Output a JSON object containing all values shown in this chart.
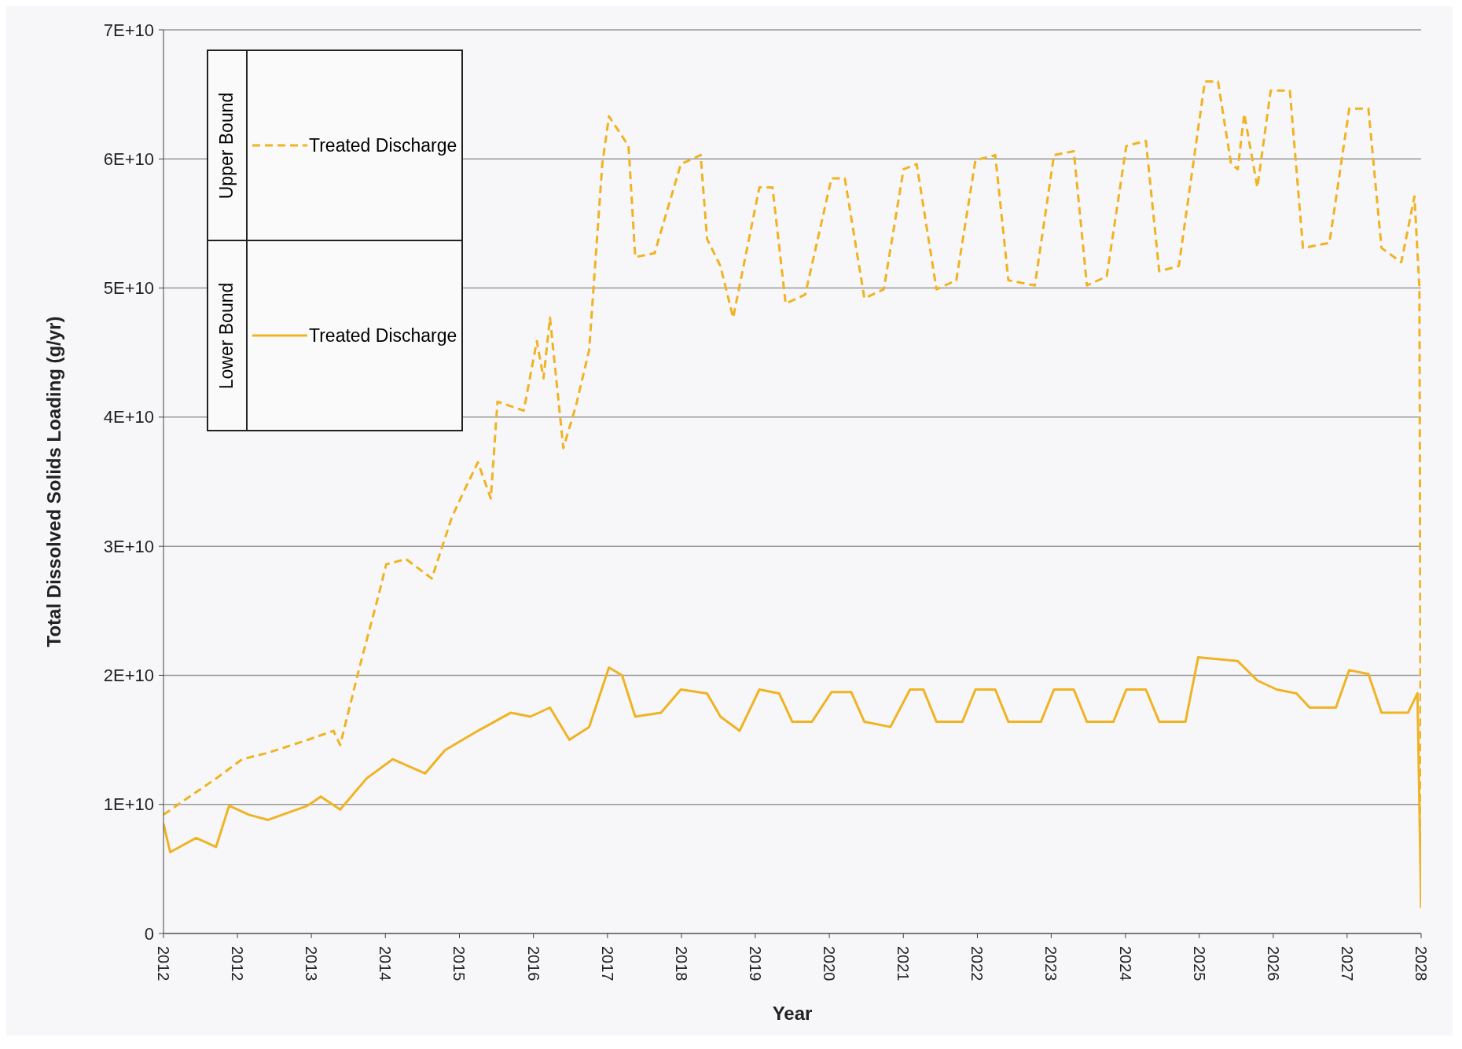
{
  "chart_data": {
    "type": "line",
    "xlabel": "Year",
    "ylabel": "Total Dissolved Solids Loading (g/yr)",
    "annotations": [
      "Upper Bound",
      "Lower Bound"
    ],
    "xlim": [
      "2012-01-01",
      "2028-01-01"
    ],
    "xticks": [
      {
        "value": "2012-01-01",
        "label": "2012"
      },
      {
        "value": "2012-12-10",
        "label": "2012"
      },
      {
        "value": "2013-11-18",
        "label": "2013"
      },
      {
        "value": "2014-10-28",
        "label": "2014"
      },
      {
        "value": "2015-10-07",
        "label": "2015"
      },
      {
        "value": "2016-09-15",
        "label": "2016"
      },
      {
        "value": "2017-08-25",
        "label": "2017"
      },
      {
        "value": "2018-08-04",
        "label": "2018"
      },
      {
        "value": "2019-07-13",
        "label": "2019"
      },
      {
        "value": "2020-06-21",
        "label": "2020"
      },
      {
        "value": "2021-05-31",
        "label": "2021"
      },
      {
        "value": "2022-05-10",
        "label": "2022"
      },
      {
        "value": "2023-04-18",
        "label": "2023"
      },
      {
        "value": "2024-03-28",
        "label": "2024"
      },
      {
        "value": "2025-03-06",
        "label": "2025"
      },
      {
        "value": "2026-02-13",
        "label": "2026"
      },
      {
        "value": "2027-01-22",
        "label": "2027"
      },
      {
        "value": "2028-01-01",
        "label": "2028"
      }
    ],
    "ylim": [
      0,
      70000000000
    ],
    "yticks": [
      0,
      {
        "value": 10000000000,
        "label": "1E+10"
      },
      {
        "value": 20000000000,
        "label": "2E+10"
      },
      {
        "value": 30000000000,
        "label": "3E+10"
      },
      {
        "value": 40000000000,
        "label": "4E+10"
      },
      {
        "value": 50000000000,
        "label": "5E+10"
      },
      {
        "value": 60000000000,
        "label": "6E+10"
      },
      {
        "value": 70000000000,
        "label": "7E+10"
      }
    ],
    "grid": "y",
    "legend": "top left",
    "marker": "none",
    "series": [
      {
        "name": "Treated Discharge",
        "color": "#f0b323",
        "line_style": "dashed",
        "x": [
          "2012-01",
          "2012-05",
          "2012-09",
          "2013-01",
          "2013-05",
          "2013-11",
          "2014-03",
          "2014-04",
          "2014-07",
          "2014-10",
          "2014-11",
          "2015-02",
          "2015-06",
          "2015-09",
          "2015-11",
          "2016-01",
          "2016-03",
          "2016-04",
          "2016-08",
          "2016-10",
          "2016-11",
          "2016-12",
          "2017-02",
          "2017-04",
          "2017-06",
          "2017-08",
          "2017-09",
          "2017-12",
          "2018-01",
          "2018-04",
          "2018-08",
          "2018-11",
          "2018-12",
          "2019-02",
          "2019-04",
          "2019-08",
          "2019-10",
          "2019-12",
          "2020-03",
          "2020-07",
          "2020-09",
          "2020-12",
          "2021-03",
          "2021-06",
          "2021-08",
          "2021-11",
          "2022-02",
          "2022-05",
          "2022-08",
          "2022-10",
          "2023-02",
          "2023-05",
          "2023-08",
          "2023-10",
          "2024-01",
          "2024-04",
          "2024-07",
          "2024-09",
          "2024-12",
          "2025-04",
          "2025-06",
          "2025-08",
          "2025-09",
          "2025-10",
          "2025-12",
          "2026-02",
          "2026-05",
          "2026-07",
          "2026-11",
          "2027-02",
          "2027-05",
          "2027-07",
          "2027-10",
          "2027-12",
          "2027-12-24",
          "2028-01-01"
        ],
        "values": [
          9200000000,
          10600000000,
          12000000000,
          13500000000,
          14000000000,
          15000000000,
          15700000000,
          14600000000,
          20700000000,
          26500000000,
          28600000000,
          29000000000,
          27500000000,
          32200000000,
          34400000000,
          36500000000,
          33700000000,
          41200000000,
          40500000000,
          45900000000,
          43000000000,
          47700000000,
          37600000000,
          40900000000,
          45200000000,
          59600000000,
          63300000000,
          61000000000,
          52400000000,
          52700000000,
          59600000000,
          60300000000,
          53800000000,
          51700000000,
          47700000000,
          57800000000,
          57800000000,
          48800000000,
          49500000000,
          58500000000,
          58500000000,
          49200000000,
          49900000000,
          59200000000,
          59600000000,
          49900000000,
          50600000000,
          59900000000,
          60300000000,
          50600000000,
          50200000000,
          60300000000,
          60600000000,
          50200000000,
          50900000000,
          61000000000,
          61400000000,
          51300000000,
          51700000000,
          66000000000,
          66000000000,
          59600000000,
          59200000000,
          63500000000,
          57800000000,
          65300000000,
          65300000000,
          53100000000,
          53500000000,
          63900000000,
          63900000000,
          53100000000,
          52000000000,
          57100000000,
          50000000000,
          2000000000
        ]
      },
      {
        "name": "Treated Discharge",
        "color": "#f0b323",
        "line_style": "solid",
        "x": [
          "2012-01",
          "2012-02",
          "2012-06",
          "2012-09",
          "2012-11",
          "2013-02",
          "2013-05",
          "2013-11",
          "2014-01",
          "2014-04",
          "2014-08",
          "2014-12",
          "2015-05",
          "2015-08",
          "2016-01",
          "2016-06",
          "2016-09",
          "2016-12",
          "2017-03",
          "2017-06",
          "2017-09",
          "2017-11",
          "2018-01",
          "2018-05",
          "2018-08",
          "2018-12",
          "2019-02",
          "2019-05",
          "2019-08",
          "2019-11",
          "2020-01",
          "2020-04",
          "2020-07",
          "2020-10",
          "2020-12",
          "2021-04",
          "2021-07",
          "2021-09",
          "2021-11",
          "2022-03",
          "2022-05",
          "2022-08",
          "2022-10",
          "2023-03",
          "2023-05",
          "2023-08",
          "2023-10",
          "2024-02",
          "2024-04",
          "2024-07",
          "2024-09",
          "2025-01",
          "2025-03",
          "2025-09",
          "2025-12",
          "2026-03",
          "2026-06",
          "2026-08",
          "2026-12",
          "2027-02",
          "2027-05",
          "2027-07",
          "2027-11",
          "2027-12-15",
          "2028-01-01"
        ],
        "values": [
          8500000000,
          6300000000,
          7400000000,
          6700000000,
          9900000000,
          9200000000,
          8800000000,
          9900000000,
          10600000000,
          9600000000,
          12000000000,
          13500000000,
          12400000000,
          14200000000,
          15700000000,
          17100000000,
          16800000000,
          17500000000,
          15000000000,
          16000000000,
          20600000000,
          20000000000,
          16800000000,
          17100000000,
          18900000000,
          18600000000,
          16800000000,
          15700000000,
          18900000000,
          18600000000,
          16400000000,
          16400000000,
          18700000000,
          18700000000,
          16400000000,
          16000000000,
          18900000000,
          18900000000,
          16400000000,
          16400000000,
          18900000000,
          18900000000,
          16400000000,
          16400000000,
          18900000000,
          18900000000,
          16400000000,
          16400000000,
          18900000000,
          18900000000,
          16400000000,
          16400000000,
          21400000000,
          21100000000,
          19600000000,
          18900000000,
          18600000000,
          17500000000,
          17500000000,
          20400000000,
          20100000000,
          17100000000,
          17100000000,
          18600000000,
          2000000000
        ]
      }
    ]
  }
}
